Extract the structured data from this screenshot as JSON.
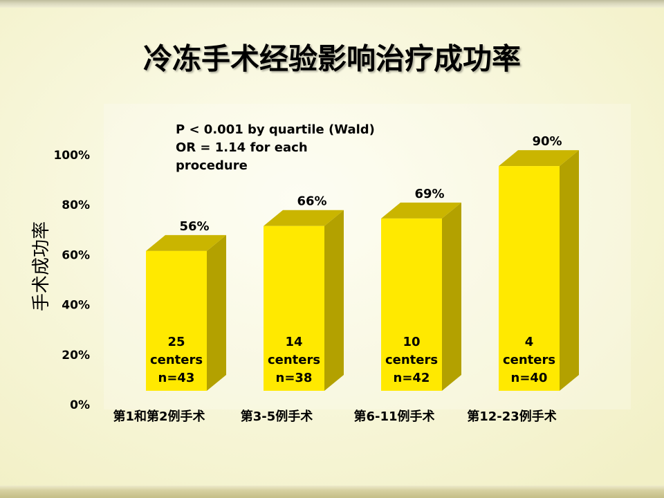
{
  "colors": {
    "background": "#F9F8DC",
    "bar_front": "#FFE900",
    "bar_top": "#CAB500",
    "bar_side": "#B3A100",
    "text": "#000000"
  },
  "chart_data": {
    "type": "bar",
    "3d": true,
    "title": "冷冻手术经验影响治疗成功率",
    "xlabel": "",
    "ylabel": "手术成功率",
    "categories": [
      "第1和第2例手术",
      "第3-5例手术",
      "第6-11例手术",
      "第12-23例手术"
    ],
    "values": [
      56,
      66,
      69,
      90
    ],
    "value_labels": [
      "56%",
      "66%",
      "69%",
      "90%"
    ],
    "bar_labels": [
      {
        "count": "25",
        "unit": "centers",
        "sample": "n=43"
      },
      {
        "count": "14",
        "unit": "centers",
        "sample": "n=38"
      },
      {
        "count": "10",
        "unit": "centers",
        "sample": "n=42"
      },
      {
        "count": "4",
        "unit": "centers",
        "sample": "n=40"
      }
    ],
    "ylim": [
      0,
      100
    ],
    "ytick_values": [
      0,
      20,
      40,
      60,
      80,
      100
    ],
    "ytick_labels": [
      "0%",
      "20%",
      "40%",
      "60%",
      "80%",
      "100%"
    ],
    "annotation": [
      "P < 0.001 by quartile (Wald)",
      "OR = 1.14 for each",
      "procedure"
    ],
    "grid": false,
    "legend": "none"
  }
}
